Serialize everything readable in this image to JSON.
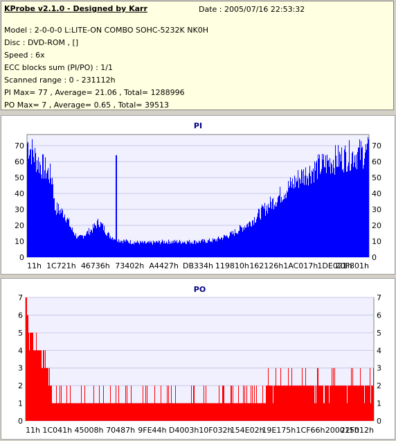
{
  "header": {
    "title": "KProbe v2.1.0 - Designed by Karr",
    "date": "Date : 2005/07/16 22:53:32",
    "lines": [
      "Model : 2-0-0-0 L:LITE-ON COMBO SOHC-5232K NK0H",
      "Disc : DVD-ROM ,  []",
      "Speed : 6x",
      "ECC blocks sum (PI/PO) : 1/1",
      "Scanned range : 0 - 231112h",
      "PI Max= 77 , Average= 21.06 , Total= 1288996",
      "PO Max= 7 , Average= 0.65 , Total= 39513"
    ]
  },
  "colors": {
    "bar": "#0000ff",
    "po_bar": "#ff0000",
    "grid": "#c8c8e6",
    "plot_bg": "#f0f0ff"
  },
  "chart_data": [
    {
      "type": "bar",
      "title": "PI",
      "ylim": [
        0,
        77
      ],
      "y_ticks": [
        0,
        10,
        20,
        30,
        40,
        50,
        60,
        70
      ],
      "x_tick_labels": [
        "11h",
        "1C721h",
        "46736h",
        "73402h",
        "A4427h",
        "DB334h",
        "119810h",
        "162126h",
        "1AC017h",
        "1DE021h",
        "20F801h"
      ],
      "grid": true,
      "profile": [
        [
          0,
          74
        ],
        [
          0.01,
          70
        ],
        [
          0.03,
          62
        ],
        [
          0.06,
          55
        ],
        [
          0.075,
          50
        ],
        [
          0.08,
          32
        ],
        [
          0.09,
          31
        ],
        [
          0.11,
          28
        ],
        [
          0.13,
          18
        ],
        [
          0.15,
          12
        ],
        [
          0.17,
          15
        ],
        [
          0.19,
          18
        ],
        [
          0.21,
          23
        ],
        [
          0.24,
          14
        ],
        [
          0.27,
          11
        ],
        [
          0.3,
          10
        ],
        [
          0.35,
          9
        ],
        [
          0.4,
          10
        ],
        [
          0.45,
          10
        ],
        [
          0.5,
          10
        ],
        [
          0.55,
          11
        ],
        [
          0.6,
          15
        ],
        [
          0.65,
          22
        ],
        [
          0.7,
          32
        ],
        [
          0.75,
          42
        ],
        [
          0.8,
          52
        ],
        [
          0.85,
          58
        ],
        [
          0.9,
          63
        ],
        [
          0.95,
          66
        ],
        [
          1.0,
          68
        ]
      ],
      "spike": {
        "at": 0.26,
        "value": 64
      }
    },
    {
      "type": "bar",
      "title": "PO",
      "ylim": [
        0,
        7
      ],
      "y_ticks": [
        0,
        1,
        2,
        3,
        4,
        5,
        6,
        7
      ],
      "x_tick_labels": [
        "11h",
        "1C041h",
        "45008h",
        "70487h",
        "9FE44h",
        "D4003h",
        "10F032h",
        "154E02h",
        "19E175h",
        "1CF66h",
        "200015h",
        "22F012h"
      ],
      "grid": true,
      "profile": [
        [
          0,
          7
        ],
        [
          0.005,
          6
        ],
        [
          0.01,
          5
        ],
        [
          0.03,
          4
        ],
        [
          0.06,
          3
        ],
        [
          0.07,
          2
        ],
        [
          0.08,
          1
        ],
        [
          0.5,
          1
        ],
        [
          0.68,
          1
        ],
        [
          0.7,
          2
        ],
        [
          0.8,
          2
        ],
        [
          1.0,
          2
        ]
      ]
    }
  ]
}
